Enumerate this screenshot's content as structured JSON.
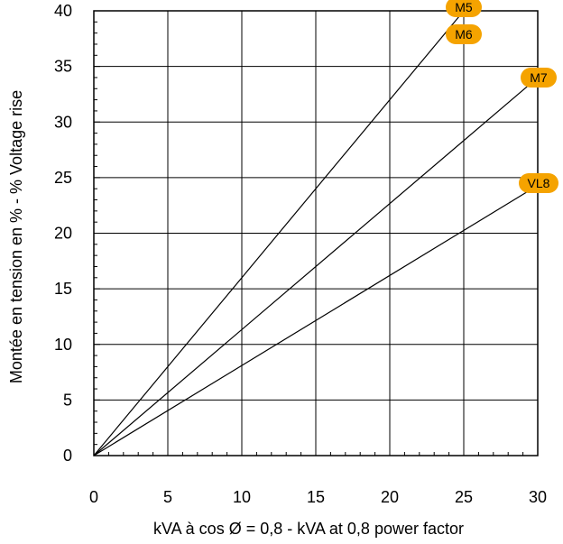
{
  "chart_data": {
    "type": "line",
    "title": "",
    "xlabel": "kVA à cos Ø = 0,8 - kVA at 0,8 power factor",
    "ylabel": "Montée en tension en % - % Voltage rise",
    "xlim": [
      0,
      30
    ],
    "ylim": [
      0,
      40
    ],
    "x_ticks": [
      0,
      5,
      10,
      15,
      20,
      25,
      30
    ],
    "y_ticks": [
      0,
      5,
      10,
      15,
      20,
      25,
      30,
      35,
      40
    ],
    "grid": true,
    "series": [
      {
        "name": "M5",
        "x": [
          0,
          25
        ],
        "y": [
          0,
          40
        ]
      },
      {
        "name": "M6",
        "x": [
          0,
          25
        ],
        "y": [
          0,
          40
        ]
      },
      {
        "name": "M7",
        "x": [
          0,
          30
        ],
        "y": [
          0,
          34
        ]
      },
      {
        "name": "VL8",
        "x": [
          0,
          30
        ],
        "y": [
          0,
          24.3
        ]
      }
    ],
    "tag_color": "#f5a300"
  }
}
